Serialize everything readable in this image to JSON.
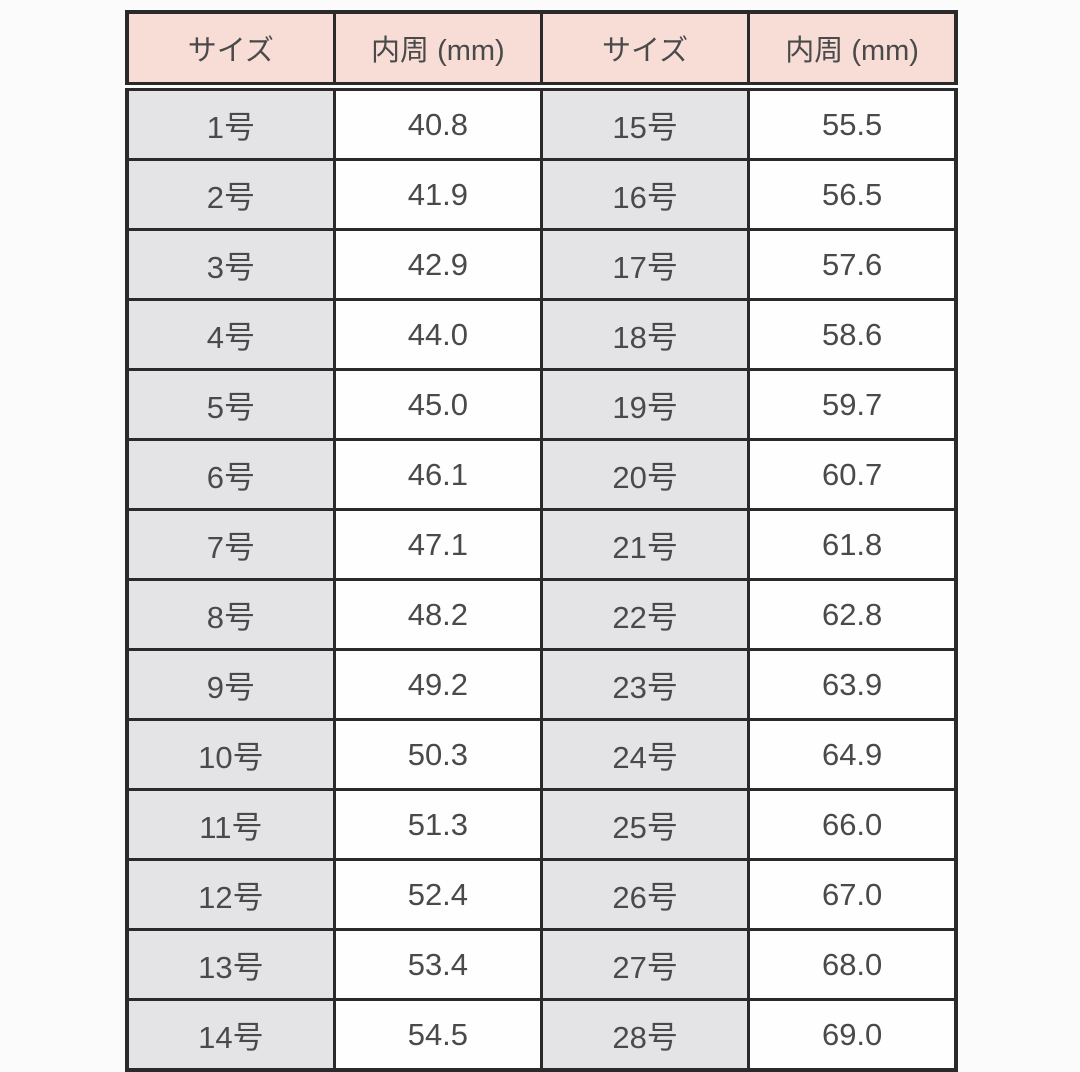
{
  "chart_data": {
    "type": "table",
    "columns": [
      "サイズ",
      "内周 (mm)",
      "サイズ",
      "内周 (mm)"
    ],
    "rows": [
      [
        "1号",
        "40.8",
        "15号",
        "55.5"
      ],
      [
        "2号",
        "41.9",
        "16号",
        "56.5"
      ],
      [
        "3号",
        "42.9",
        "17号",
        "57.6"
      ],
      [
        "4号",
        "44.0",
        "18号",
        "58.6"
      ],
      [
        "5号",
        "45.0",
        "19号",
        "59.7"
      ],
      [
        "6号",
        "46.1",
        "20号",
        "60.7"
      ],
      [
        "7号",
        "47.1",
        "21号",
        "61.8"
      ],
      [
        "8号",
        "48.2",
        "22号",
        "62.8"
      ],
      [
        "9号",
        "49.2",
        "23号",
        "63.9"
      ],
      [
        "10号",
        "50.3",
        "24号",
        "64.9"
      ],
      [
        "11号",
        "51.3",
        "25号",
        "66.0"
      ],
      [
        "12号",
        "52.4",
        "26号",
        "67.0"
      ],
      [
        "13号",
        "53.4",
        "27号",
        "68.0"
      ],
      [
        "14号",
        "54.5",
        "28号",
        "69.0"
      ]
    ],
    "layout": {
      "grid": "on",
      "header_rule": "double-line",
      "column_roles": [
        "size",
        "value",
        "size",
        "value"
      ]
    }
  },
  "colors": {
    "header_bg": "#f7ddd6",
    "size_cell_bg": "#e4e3e6",
    "value_cell_bg": "#fefefe",
    "border": "#2a2a2a",
    "text": "#4a4a4a",
    "page_bg": "#fcfbfb"
  }
}
